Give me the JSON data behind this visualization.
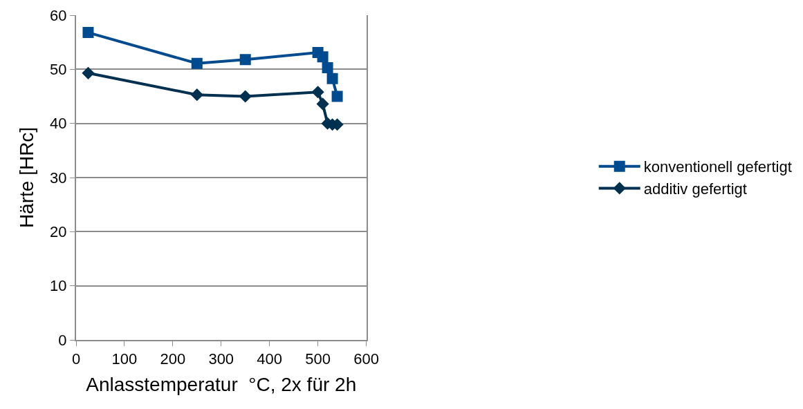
{
  "chart_data": {
    "type": "line",
    "xlabel": "Anlasstemperatur  °C, 2x für 2h",
    "ylabel": "Härte [HRc]",
    "xlim": [
      0,
      600
    ],
    "xticks": [
      0,
      100,
      200,
      300,
      400,
      500,
      600
    ],
    "ylim": [
      0,
      60
    ],
    "yticks": [
      0,
      10,
      20,
      30,
      40,
      50,
      60
    ],
    "grid": "y",
    "legend": "right",
    "line_style": "solid",
    "series": [
      {
        "name": "konventionell gefertigt",
        "color": "#004a8f",
        "marker": "square",
        "x": [
          25,
          250,
          350,
          500,
          510,
          520,
          530,
          540
        ],
        "values": [
          56.8,
          51.1,
          51.8,
          53.1,
          52.3,
          50.3,
          48.3,
          45.0
        ]
      },
      {
        "name": "additiv gefertigt",
        "color": "#00304f",
        "marker": "diamond",
        "x": [
          25,
          250,
          350,
          500,
          510,
          520,
          530,
          540
        ],
        "values": [
          49.3,
          45.3,
          45.0,
          45.8,
          43.6,
          40.0,
          39.8,
          39.8
        ]
      }
    ]
  }
}
